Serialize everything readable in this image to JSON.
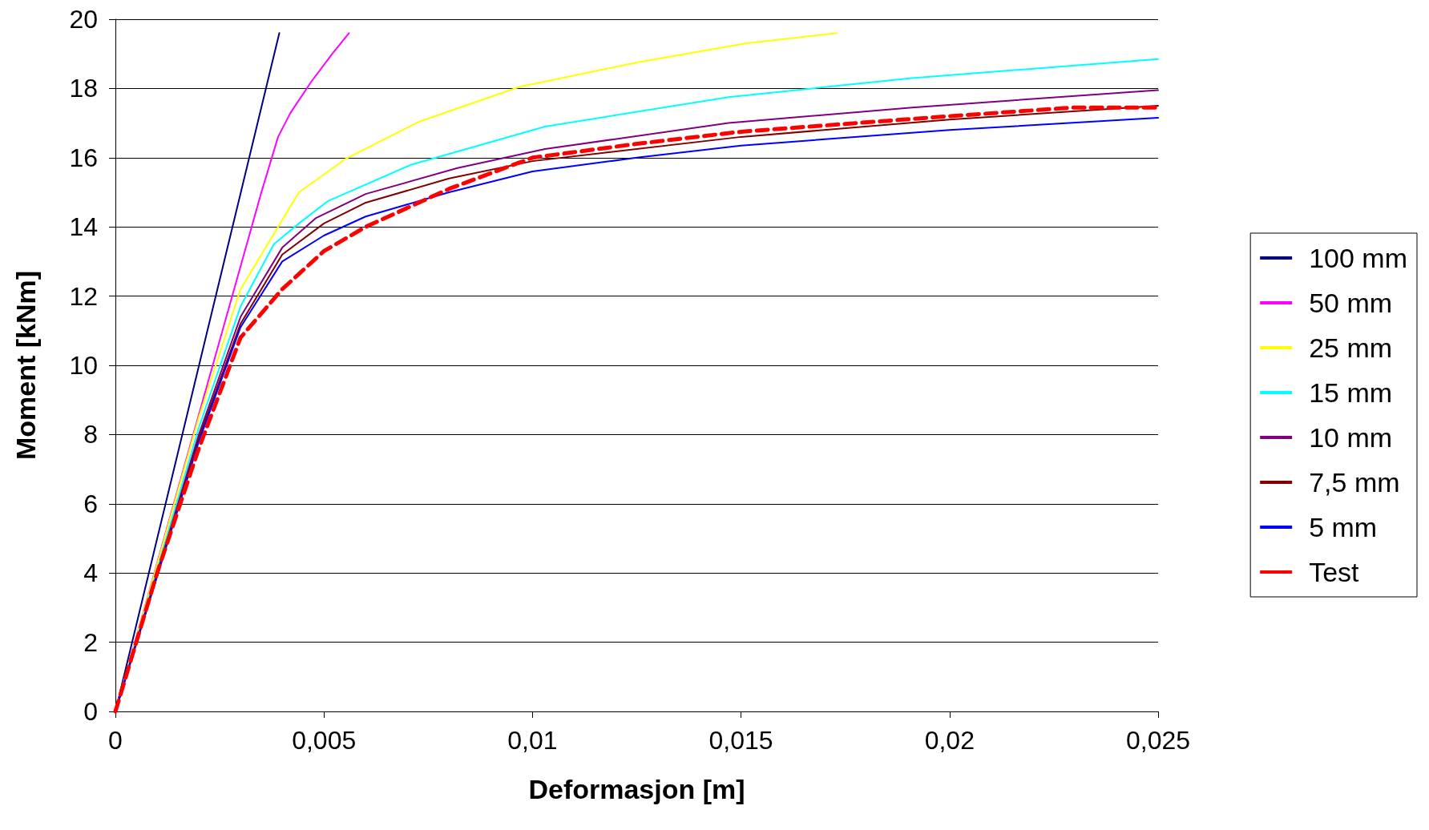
{
  "chart_data": {
    "type": "line",
    "xlabel": "Deformasjon [m]",
    "ylabel": "Moment [kNm]",
    "xlim": [
      0,
      0.025
    ],
    "xticks": [
      0,
      {
        "value": 0.005,
        "label": "0,005"
      },
      {
        "value": 0.01,
        "label": "0,01"
      },
      {
        "value": 0.015,
        "label": "0,015"
      },
      {
        "value": 0.02,
        "label": "0,02"
      },
      {
        "value": 0.025,
        "label": "0,025"
      }
    ],
    "ylim": [
      0,
      20
    ],
    "yticks": [
      0,
      2,
      4,
      6,
      8,
      10,
      12,
      14,
      16,
      18,
      20
    ],
    "grid": "y",
    "legend": "right",
    "marker": "none",
    "series": [
      {
        "name": "100 mm",
        "color": "#000080",
        "x": [
          0,
          0.00393
        ],
        "values": [
          0,
          19.6
        ]
      },
      {
        "name": "50 mm",
        "color": "#ff00ff",
        "x": [
          0,
          0.0035,
          0.0039,
          0.0042,
          0.0047,
          0.0052,
          0.0056
        ],
        "values": [
          0,
          15,
          16.6,
          17.3,
          18.2,
          19.0,
          19.6
        ]
      },
      {
        "name": "25 mm",
        "color": "#ffff00",
        "x": [
          0,
          0.002,
          0.003,
          0.0039,
          0.0044,
          0.0055,
          0.0073,
          0.0097,
          0.0125,
          0.0151,
          0.0173
        ],
        "values": [
          0,
          8.5,
          12.2,
          14.0,
          15.0,
          15.95,
          17.05,
          18.05,
          18.75,
          19.3,
          19.6
        ]
      },
      {
        "name": "15 mm",
        "color": "#00ffff",
        "x": [
          0,
          0.002,
          0.003,
          0.0038,
          0.0044,
          0.0051,
          0.0071,
          0.0103,
          0.0147,
          0.0191,
          0.025
        ],
        "values": [
          0,
          8.2,
          11.7,
          13.5,
          14.1,
          14.75,
          15.8,
          16.9,
          17.75,
          18.3,
          18.85
        ]
      },
      {
        "name": "10 mm",
        "color": "#800080",
        "x": [
          0,
          0.002,
          0.003,
          0.004,
          0.0048,
          0.006,
          0.0082,
          0.0103,
          0.0147,
          0.0191,
          0.025
        ],
        "values": [
          0,
          8.0,
          11.4,
          13.4,
          14.25,
          14.95,
          15.7,
          16.25,
          17.0,
          17.45,
          17.95
        ]
      },
      {
        "name": "7,5 mm",
        "color": "#800000",
        "x": [
          0,
          0.002,
          0.003,
          0.004,
          0.005,
          0.006,
          0.008,
          0.01,
          0.015,
          0.02,
          0.025
        ],
        "values": [
          0,
          7.9,
          11.2,
          13.2,
          14.1,
          14.7,
          15.4,
          15.9,
          16.6,
          17.1,
          17.5
        ]
      },
      {
        "name": "5 mm",
        "color": "#0000ff",
        "x": [
          0,
          0.002,
          0.003,
          0.004,
          0.005,
          0.006,
          0.008,
          0.01,
          0.0125,
          0.015,
          0.02,
          0.025
        ],
        "values": [
          0,
          7.8,
          11.1,
          13.0,
          13.75,
          14.3,
          15.0,
          15.6,
          16.0,
          16.35,
          16.8,
          17.15
        ]
      },
      {
        "name": "Test",
        "color": "#ff0000",
        "line_style": "dashed",
        "x": [
          0,
          0.001,
          0.002,
          0.003,
          0.004,
          0.005,
          0.006,
          0.008,
          0.01,
          0.0125,
          0.015,
          0.02,
          0.023,
          0.025
        ],
        "values": [
          0,
          4,
          7.6,
          10.8,
          12.2,
          13.3,
          14.0,
          15.1,
          16.0,
          16.4,
          16.75,
          17.2,
          17.45,
          17.45
        ]
      }
    ]
  }
}
